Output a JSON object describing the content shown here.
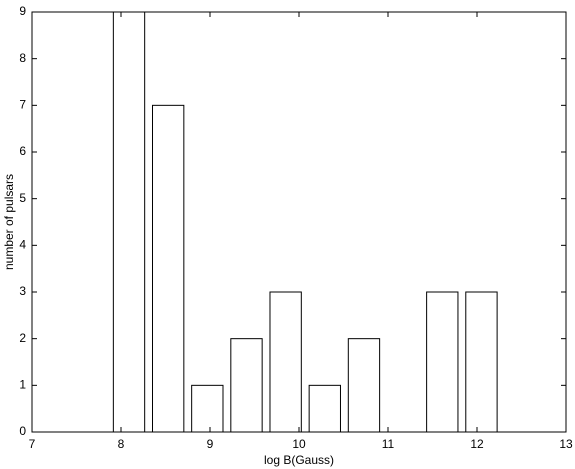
{
  "chart_data": {
    "type": "bar",
    "x": [
      8.09,
      8.53,
      8.97,
      9.41,
      9.85,
      10.29,
      10.73,
      11.17,
      11.61,
      12.05
    ],
    "values": [
      9,
      7,
      1,
      2,
      3,
      1,
      2,
      0,
      3,
      3
    ],
    "color": "#ffffff",
    "x_label": "log B(Gauss)",
    "y_label": "number of pulsars",
    "xlim": [
      7,
      13
    ],
    "xticks": [
      7,
      8,
      9,
      10,
      11,
      12,
      13
    ],
    "ylim": [
      0,
      9
    ],
    "yticks": [
      0,
      1,
      2,
      3,
      4,
      5,
      6,
      7,
      8,
      9
    ],
    "grid": false
  }
}
